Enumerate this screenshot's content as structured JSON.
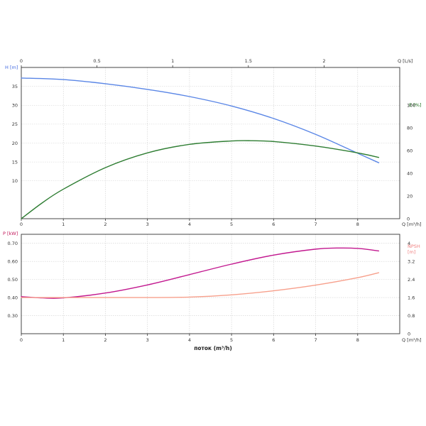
{
  "chart_data": [
    {
      "type": "line",
      "x_label": "Q [m³/h]",
      "x_ticks": [
        0,
        1,
        2,
        3,
        4,
        5,
        6,
        7,
        8
      ],
      "xlim": [
        0,
        9
      ],
      "top_axis": {
        "label": "Q [L/s]",
        "ticks": [
          "0",
          "0.5",
          "1",
          "1.5",
          "2"
        ],
        "tick_values": [
          0,
          0.5,
          1,
          1.5,
          2
        ]
      },
      "left_axis": {
        "label": "H [m]",
        "color": "#4169e1",
        "ticks": [
          10,
          15,
          20,
          25,
          30,
          35
        ],
        "ylim": [
          0,
          40
        ]
      },
      "right_axis": {
        "label": "E [%]",
        "color": "#1a6e1a",
        "ticks": [
          0,
          20,
          40,
          60,
          80,
          100
        ],
        "ylim": [
          0,
          133.3
        ]
      },
      "grid": true,
      "series": [
        {
          "axis": "left",
          "color": "#5a86e6",
          "x": [
            0,
            1,
            2,
            3,
            4,
            5,
            6,
            7,
            8,
            8.5
          ],
          "values": [
            37.2,
            36.8,
            35.7,
            34.2,
            32.3,
            29.8,
            26.5,
            22.3,
            17.3,
            14.8
          ]
        },
        {
          "axis": "right",
          "color": "#2e7d32",
          "x": [
            0,
            0.5,
            1,
            2,
            3,
            4,
            5,
            5.5,
            6,
            7,
            8,
            8.5
          ],
          "values": [
            0,
            14,
            26,
            45,
            58,
            65.5,
            68.5,
            68.7,
            68,
            64,
            58,
            54
          ]
        }
      ]
    },
    {
      "type": "line",
      "x_label": "Q [m³/h]",
      "x_ticks": [
        0,
        1,
        2,
        3,
        4,
        5,
        6,
        7,
        8
      ],
      "xlim": [
        0,
        9
      ],
      "left_axis": {
        "label": "P [kW]",
        "color": "#c2185b",
        "ticks": [
          "0.30",
          "0.40",
          "0.50",
          "0.60",
          "0.70"
        ],
        "tick_values": [
          0.3,
          0.4,
          0.5,
          0.6,
          0.7
        ],
        "ylim": [
          0.2,
          0.75
        ]
      },
      "right_axis": {
        "label_lines": [
          "NPSH",
          "[m]"
        ],
        "color": "#f08080",
        "ticks": [
          "0",
          "0.8",
          "1.6",
          "2.4",
          "3.2",
          "4"
        ],
        "tick_values": [
          0,
          0.8,
          1.6,
          2.4,
          3.2,
          4
        ],
        "ylim": [
          0,
          4.4
        ]
      },
      "grid": true,
      "series": [
        {
          "axis": "left",
          "color": "#c2188f",
          "x": [
            0,
            0.5,
            1,
            2,
            3,
            4,
            5,
            6,
            7,
            7.5,
            8,
            8.5
          ],
          "values": [
            0.405,
            0.398,
            0.398,
            0.425,
            0.47,
            0.527,
            0.585,
            0.635,
            0.668,
            0.674,
            0.672,
            0.658
          ]
        },
        {
          "axis": "right",
          "color": "#f7a08c",
          "x": [
            0,
            1,
            2,
            3,
            4,
            5,
            6,
            7,
            8,
            8.5
          ],
          "values": [
            1.6,
            1.6,
            1.6,
            1.6,
            1.62,
            1.72,
            1.9,
            2.15,
            2.48,
            2.7
          ]
        }
      ]
    }
  ],
  "footer": {
    "xlabel": "поток (m³/h)"
  }
}
